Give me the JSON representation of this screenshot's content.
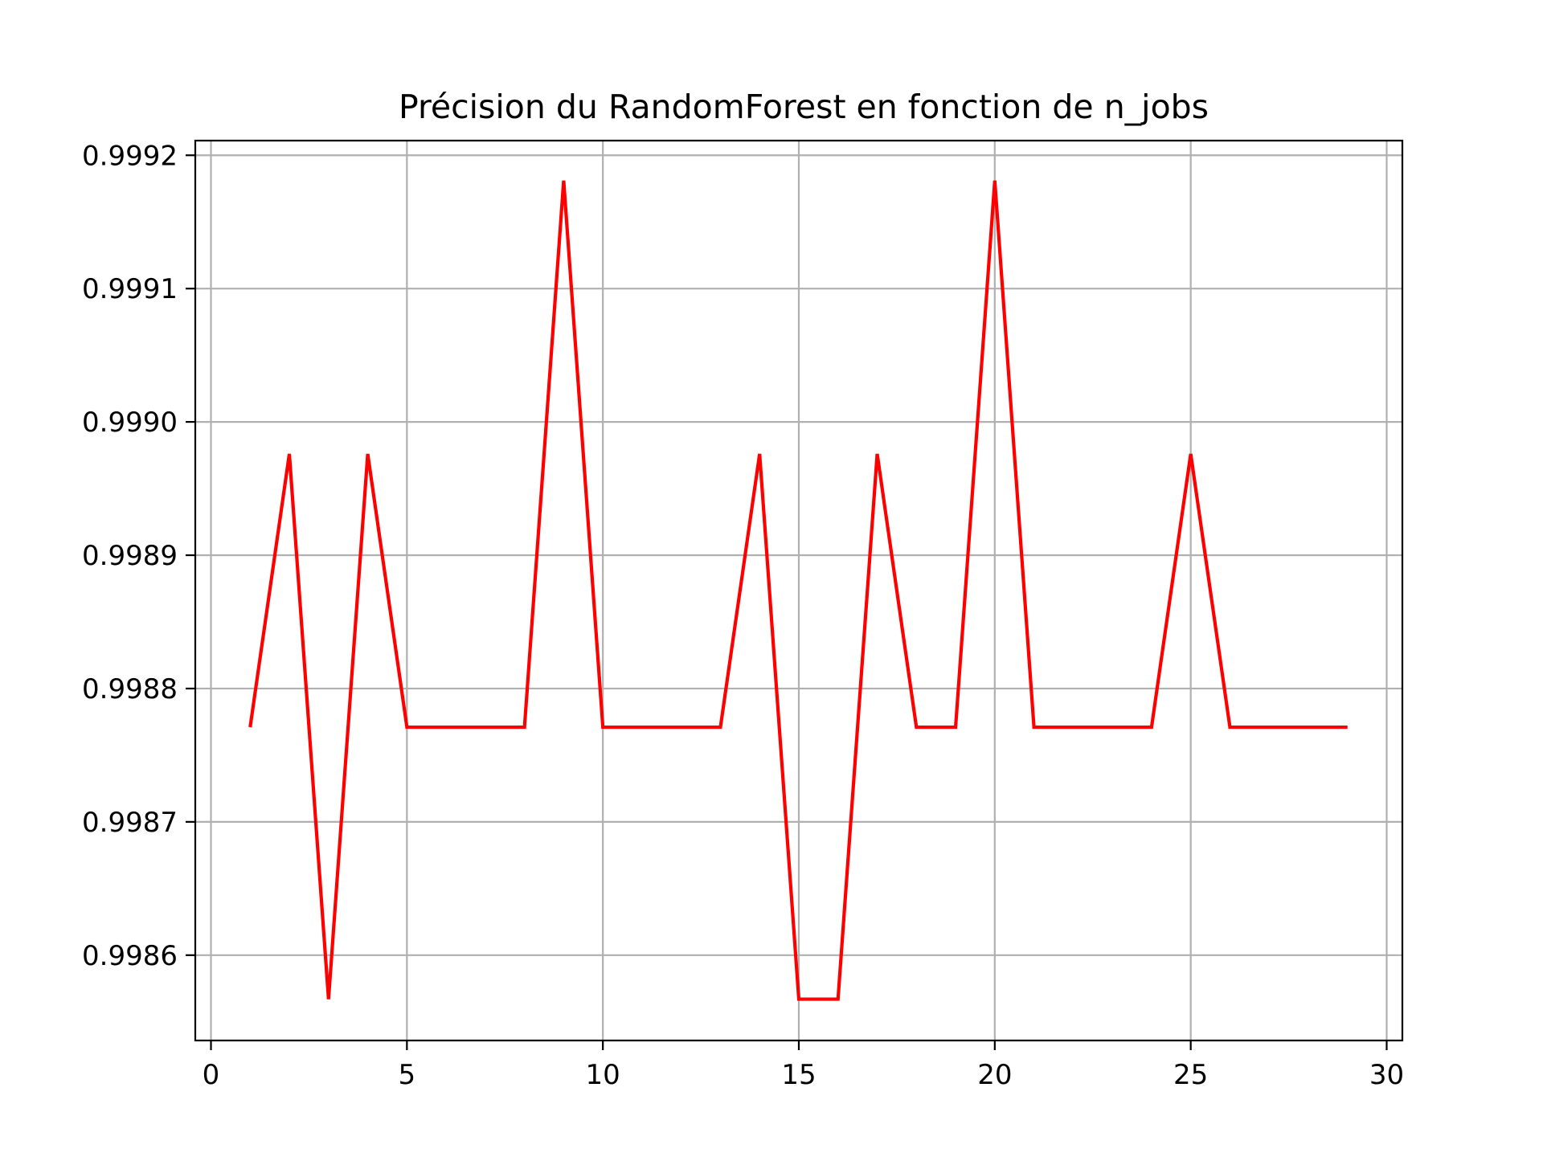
{
  "chart_data": {
    "type": "line",
    "title": "Précision du RandomForest en fonction de n_jobs",
    "xlabel": "",
    "ylabel": "",
    "xlim": [
      -0.4,
      30.4
    ],
    "ylim": [
      0.998536,
      0.999211
    ],
    "xticks": [
      0,
      5,
      10,
      15,
      20,
      25,
      30
    ],
    "xtick_labels": [
      "0",
      "5",
      "10",
      "15",
      "20",
      "25",
      "30"
    ],
    "yticks": [
      0.9986,
      0.9987,
      0.9988,
      0.9989,
      0.999,
      0.9991,
      0.9992
    ],
    "ytick_labels": [
      "0.9986",
      "0.9987",
      "0.9988",
      "0.9989",
      "0.9990",
      "0.9991",
      "0.9992"
    ],
    "grid": true,
    "series": [
      {
        "color": "#ff0000",
        "x": [
          1,
          2,
          3,
          4,
          5,
          6,
          7,
          8,
          9,
          10,
          11,
          12,
          13,
          14,
          15,
          16,
          17,
          18,
          19,
          20,
          21,
          22,
          23,
          24,
          25,
          26,
          27,
          28,
          29
        ],
        "values": [
          0.998771,
          0.998976,
          0.998567,
          0.998976,
          0.998771,
          0.998771,
          0.998771,
          0.998771,
          0.999181,
          0.998771,
          0.998771,
          0.998771,
          0.998771,
          0.998976,
          0.998567,
          0.998567,
          0.998976,
          0.998771,
          0.998771,
          0.999181,
          0.998771,
          0.998771,
          0.998771,
          0.998771,
          0.998976,
          0.998771,
          0.998771,
          0.998771,
          0.998771
        ]
      }
    ]
  }
}
